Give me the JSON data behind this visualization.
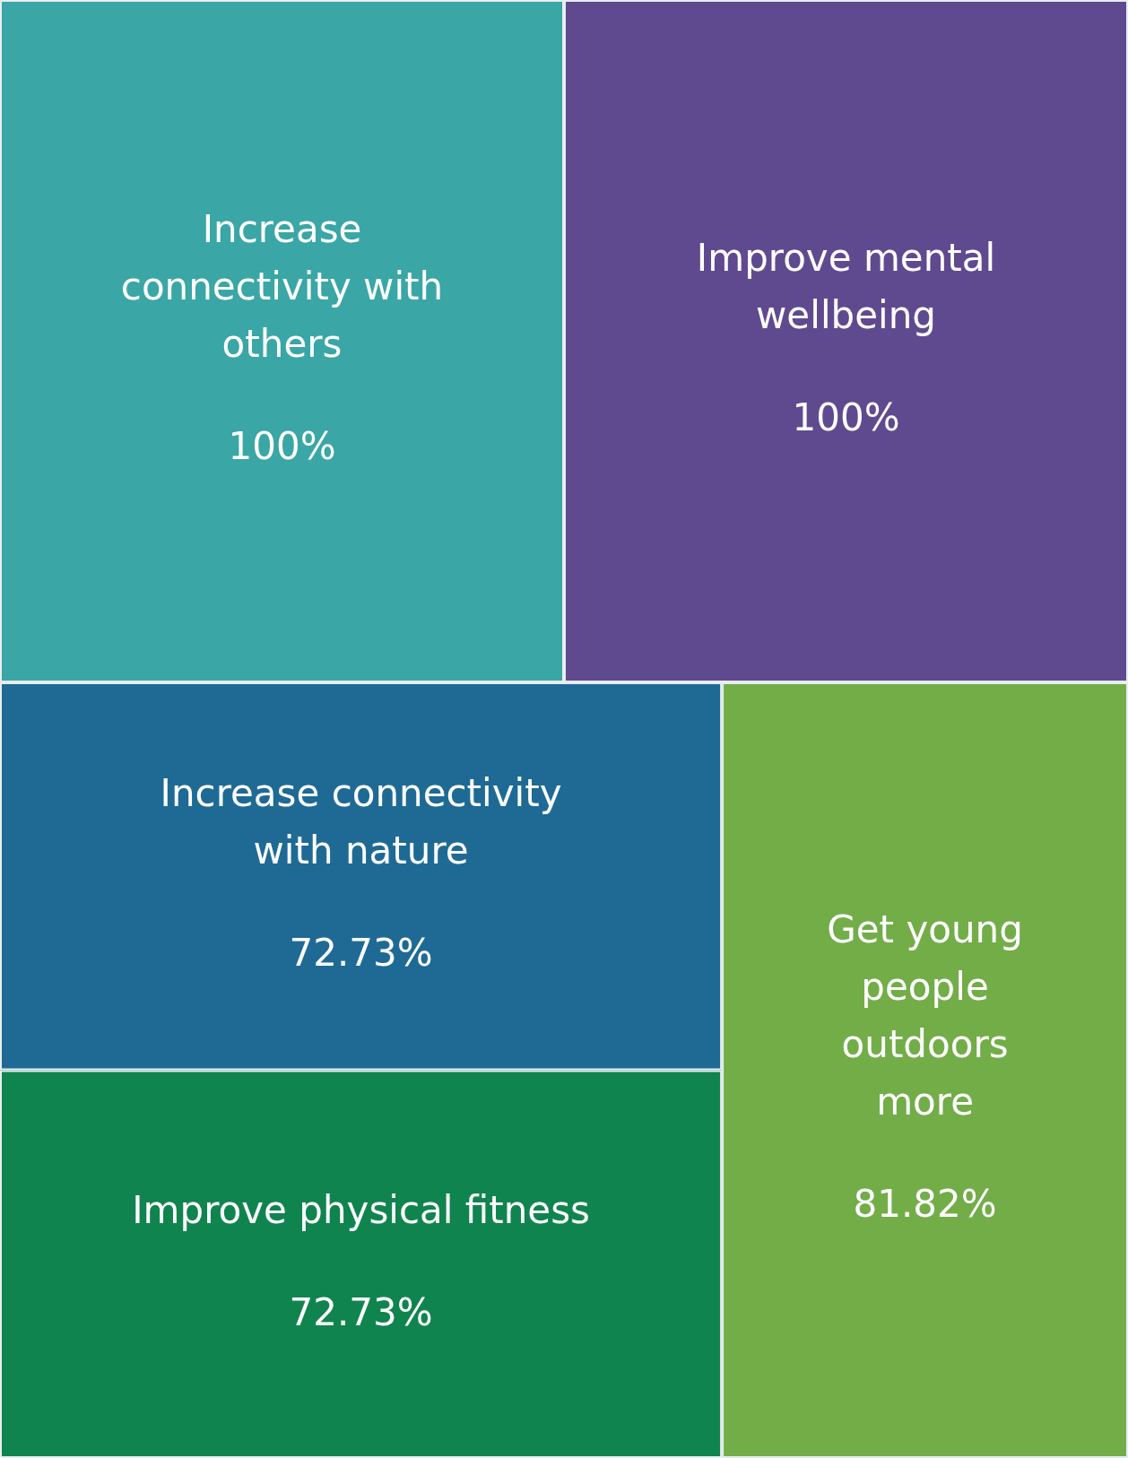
{
  "chart_data": {
    "type": "other",
    "categories": [
      "Increase connectivity with others",
      "Improve mental wellbeing",
      "Increase connectivity with nature",
      "Improve physical fitness",
      "Get young people outdoors more"
    ],
    "values": [
      100,
      100,
      72.73,
      72.73,
      81.82
    ],
    "value_labels": [
      "100%",
      "100%",
      "72.73%",
      "72.73%",
      "81.82%"
    ],
    "colors": [
      "#3aa6a6",
      "#5f4a8f",
      "#1e6a95",
      "#10844f",
      "#72ad48"
    ]
  }
}
